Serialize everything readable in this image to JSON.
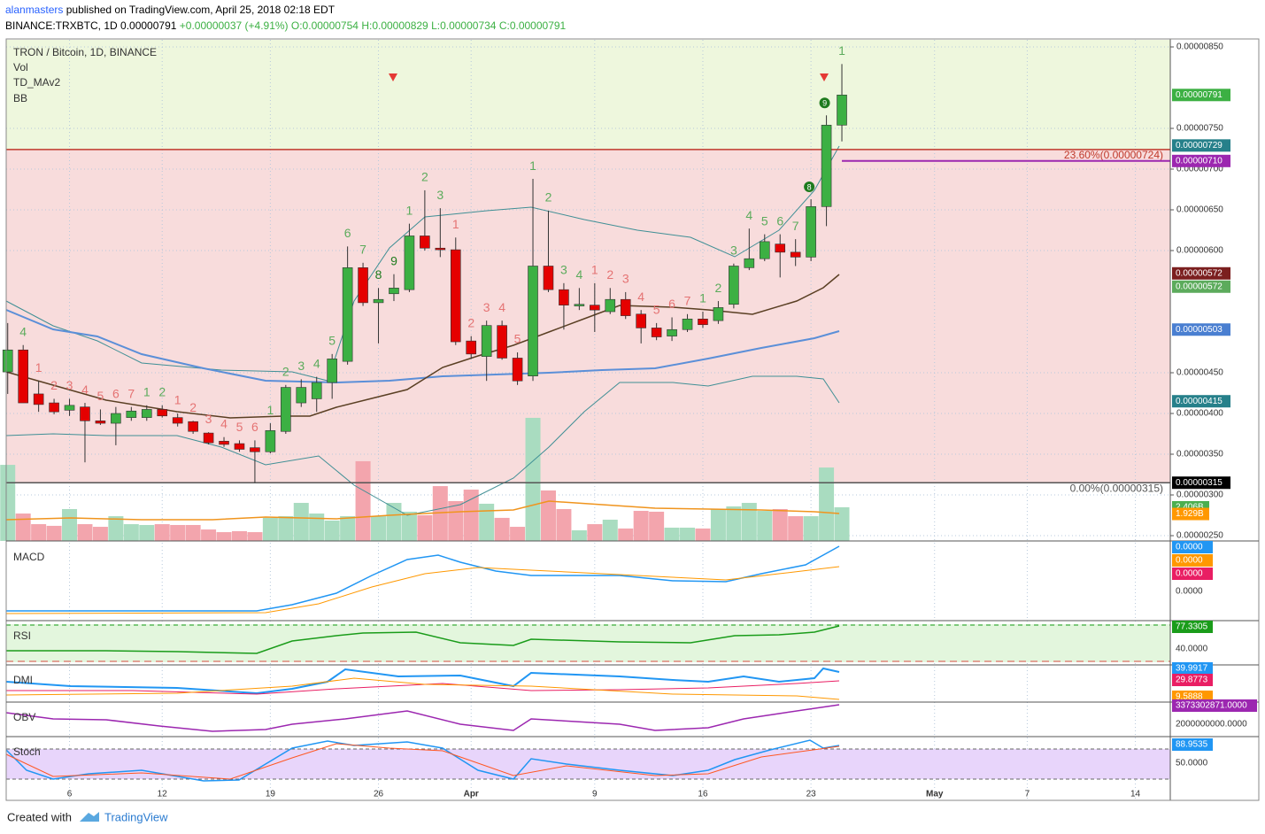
{
  "chart_data": {
    "type": "candlestick",
    "header": {
      "author": "alanmasters",
      "published": "published on TradingView.com, April 25, 2018 02:18 EDT",
      "symbol": "BINANCE:TRXBTC, 1D",
      "last": "0.00000791",
      "change": "+0.00000037 (+4.91%)",
      "o": "O:0.00000754",
      "h": "H:0.00000829",
      "l": "L:0.00000734",
      "c": "C:0.00000791"
    },
    "legend": [
      "TRON / Bitcoin, 1D, BINANCE",
      "Vol",
      "TD_MAv2",
      "BB"
    ],
    "footer": {
      "created": "Created with",
      "brand": "TradingView"
    },
    "categories": [
      null,
      null,
      null,
      null,
      "6",
      null,
      null,
      null,
      null,
      null,
      "12",
      null,
      null,
      null,
      null,
      null,
      null,
      "19",
      null,
      null,
      null,
      null,
      null,
      null,
      "26",
      null,
      null,
      null,
      null,
      null,
      "Apr",
      null,
      null,
      null,
      null,
      null,
      null,
      null,
      "9",
      null,
      null,
      null,
      null,
      null,
      null,
      "16",
      null,
      null,
      null,
      null,
      null,
      null,
      "23",
      null,
      null,
      null,
      null,
      null,
      null,
      null,
      "May",
      null,
      null,
      null,
      null,
      null,
      "7",
      null,
      null,
      null,
      null,
      null,
      null,
      "14"
    ],
    "open": [
      4.51e-06,
      4.78e-06,
      4.24e-06,
      4.13e-06,
      4.04e-06,
      4.08e-06,
      3.91e-06,
      3.88e-06,
      3.95e-06,
      3.95e-06,
      4.05e-06,
      3.95e-06,
      3.9e-06,
      3.76e-06,
      3.66e-06,
      3.63e-06,
      3.58e-06,
      3.53e-06,
      3.78e-06,
      4.13e-06,
      4.18e-06,
      4.38e-06,
      4.64e-06,
      5.79e-06,
      5.36e-06,
      5.47e-06,
      5.52e-06,
      6.18e-06,
      6.03e-06,
      6.01e-06,
      4.89e-06,
      4.7e-06,
      5.08e-06,
      4.68e-06,
      4.46e-06,
      5.81e-06,
      5.52e-06,
      5.32e-06,
      5.33e-06,
      5.25e-06,
      5.4e-06,
      5.22e-06,
      5.05e-06,
      4.95e-06,
      5.03e-06,
      5.16e-06,
      5.14e-06,
      5.34e-06,
      5.79e-06,
      5.9e-06,
      6.08e-06,
      5.98e-06,
      5.92e-06,
      6.54e-06,
      7.54e-06,
      null,
      null,
      null,
      null,
      null,
      null,
      null,
      null,
      null,
      null,
      null,
      null,
      null,
      null,
      null,
      null,
      null,
      null,
      null
    ],
    "high": [
      5.11e-06,
      4.84e-06,
      4.4e-06,
      4.18e-06,
      4.18e-06,
      4.13e-06,
      4.05e-06,
      4.08e-06,
      4.08e-06,
      4.1e-06,
      4.1e-06,
      4e-06,
      3.91e-06,
      3.77e-06,
      3.71e-06,
      3.67e-06,
      3.67e-06,
      3.88e-06,
      4.35e-06,
      4.42e-06,
      4.45e-06,
      4.73e-06,
      6.05e-06,
      5.85e-06,
      5.54e-06,
      5.71e-06,
      6.33e-06,
      6.74e-06,
      6.52e-06,
      6.16e-06,
      4.95e-06,
      5.14e-06,
      5.14e-06,
      4.75e-06,
      6.88e-06,
      6.49e-06,
      5.6e-06,
      5.54e-06,
      5.6e-06,
      5.54e-06,
      5.49e-06,
      5.27e-06,
      5.11e-06,
      5.18e-06,
      5.22e-06,
      5.25e-06,
      5.38e-06,
      5.84e-06,
      6.27e-06,
      6.2e-06,
      6.2e-06,
      6.14e-06,
      6.63e-06,
      7.66e-06,
      8.29e-06,
      null,
      null,
      null,
      null,
      null,
      null,
      null,
      null,
      null,
      null,
      null,
      null,
      null,
      null,
      null,
      null,
      null,
      null,
      null
    ],
    "low": [
      4.24e-06,
      4.13e-06,
      4.02e-06,
      3.99e-06,
      3.97e-06,
      3.4e-06,
      3.86e-06,
      3.61e-06,
      3.91e-06,
      3.91e-06,
      3.95e-06,
      3.84e-06,
      3.75e-06,
      3.62e-06,
      3.59e-06,
      3.53e-06,
      3.15e-06,
      3.51e-06,
      3.75e-06,
      4.08e-06,
      4.02e-06,
      4.18e-06,
      4.6e-06,
      5.32e-06,
      4.86e-06,
      5.38e-06,
      5.49e-06,
      6e-06,
      5.92e-06,
      4.84e-06,
      4.67e-06,
      4.4e-06,
      4.66e-06,
      4.35e-06,
      4.4e-06,
      5.49e-06,
      5.03e-06,
      5.27e-06,
      5e-06,
      5.22e-06,
      5.16e-06,
      4.86e-06,
      4.9e-06,
      4.89e-06,
      5e-06,
      5.05e-06,
      5.1e-06,
      5.29e-06,
      5.76e-06,
      5.87e-06,
      5.67e-06,
      5.81e-06,
      5.87e-06,
      6.3e-06,
      7.34e-06,
      null,
      null,
      null,
      null,
      null,
      null,
      null,
      null,
      null,
      null,
      null,
      null,
      null,
      null,
      null,
      null,
      null,
      null,
      null
    ],
    "close": [
      4.78e-06,
      4.13e-06,
      4.11e-06,
      4.02e-06,
      4.1e-06,
      3.91e-06,
      3.88e-06,
      4e-06,
      4.03e-06,
      4.05e-06,
      3.97e-06,
      3.88e-06,
      3.78e-06,
      3.64e-06,
      3.62e-06,
      3.56e-06,
      3.53e-06,
      3.79e-06,
      4.32e-06,
      4.32e-06,
      4.38e-06,
      4.67e-06,
      5.79e-06,
      5.36e-06,
      5.4e-06,
      5.54e-06,
      6.18e-06,
      6.03e-06,
      6.01e-06,
      4.88e-06,
      4.73e-06,
      5.08e-06,
      4.68e-06,
      4.4e-06,
      5.81e-06,
      5.52e-06,
      5.33e-06,
      5.34e-06,
      5.27e-06,
      5.4e-06,
      5.2e-06,
      5.05e-06,
      4.94e-06,
      5.03e-06,
      5.16e-06,
      5.09e-06,
      5.3e-06,
      5.81e-06,
      5.9e-06,
      6.11e-06,
      5.98e-06,
      5.92e-06,
      6.54e-06,
      7.54e-06,
      7.91e-06,
      null,
      null,
      null,
      null,
      null,
      null,
      null,
      null,
      null,
      null,
      null,
      null,
      null,
      null,
      null,
      null,
      null,
      null,
      null
    ],
    "volume": [
      5.44,
      1.96,
      1.2,
      1.08,
      2.28,
      1.2,
      1.01,
      1.77,
      1.2,
      1.14,
      1.2,
      1.14,
      1.14,
      0.82,
      0.63,
      0.7,
      0.63,
      1.65,
      1.77,
      2.72,
      1.96,
      1.46,
      1.77,
      5.7,
      1.77,
      2.72,
      2.09,
      1.84,
      3.92,
      2.85,
      3.67,
      2.66,
      1.65,
      1.01,
      8.8,
      3.61,
      2.28,
      0.76,
      1.2,
      1.52,
      0.89,
      2.15,
      2.09,
      0.95,
      0.95,
      0.89,
      2.28,
      2.47,
      2.72,
      2.15,
      2.28,
      1.77,
      1.77,
      5.25,
      2.41,
      null,
      null,
      null,
      null,
      null,
      null,
      null,
      null,
      null,
      null,
      null,
      null,
      null,
      null,
      null,
      null,
      null,
      null,
      null
    ],
    "td_setup": [
      null,
      {
        "label": "4",
        "color": "#5cab5c"
      },
      {
        "label": "1",
        "color": "#e57373"
      },
      {
        "label": "2",
        "color": "#e57373"
      },
      {
        "label": "3",
        "color": "#e57373"
      },
      {
        "label": "4",
        "color": "#e57373"
      },
      {
        "label": "5",
        "color": "#e57373"
      },
      {
        "label": "6",
        "color": "#e57373"
      },
      {
        "label": "7",
        "color": "#e57373"
      },
      {
        "label": "1",
        "color": "#5cab5c"
      },
      {
        "label": "2",
        "color": "#5cab5c"
      },
      {
        "label": "1",
        "color": "#e57373"
      },
      {
        "label": "2",
        "color": "#e57373"
      },
      {
        "label": "3",
        "color": "#e57373"
      },
      {
        "label": "4",
        "color": "#e57373"
      },
      {
        "label": "5",
        "color": "#e57373"
      },
      {
        "label": "6",
        "color": "#e57373"
      },
      {
        "label": "1",
        "color": "#5cab5c"
      },
      {
        "label": "2",
        "color": "#5cab5c"
      },
      {
        "label": "3",
        "color": "#5cab5c"
      },
      {
        "label": "4",
        "color": "#5cab5c"
      },
      {
        "label": "5",
        "color": "#5cab5c"
      },
      {
        "label": "6",
        "color": "#5cab5c"
      },
      {
        "label": "7",
        "color": "#5cab5c"
      },
      {
        "label": "8",
        "color": "#1e7b1e"
      },
      {
        "label": "9",
        "color": "#1e7b1e"
      },
      {
        "label": "1",
        "color": "#5cab5c"
      },
      {
        "label": "2",
        "color": "#5cab5c"
      },
      {
        "label": "3",
        "color": "#5cab5c"
      },
      {
        "label": "1",
        "color": "#e57373"
      },
      {
        "label": "2",
        "color": "#e57373"
      },
      {
        "label": "3",
        "color": "#e57373"
      },
      {
        "label": "4",
        "color": "#e57373"
      },
      {
        "label": "5",
        "color": "#e57373"
      },
      {
        "label": "1",
        "color": "#5cab5c"
      },
      {
        "label": "2",
        "color": "#5cab5c"
      },
      {
        "label": "3",
        "color": "#5cab5c"
      },
      {
        "label": "4",
        "color": "#5cab5c"
      },
      {
        "label": "1",
        "color": "#e57373"
      },
      {
        "label": "2",
        "color": "#e57373"
      },
      {
        "label": "3",
        "color": "#e57373"
      },
      {
        "label": "4",
        "color": "#e57373"
      },
      {
        "label": "5",
        "color": "#e57373"
      },
      {
        "label": "6",
        "color": "#e57373"
      },
      {
        "label": "7",
        "color": "#e57373"
      },
      {
        "label": "1",
        "color": "#5cab5c"
      },
      {
        "label": "2",
        "color": "#5cab5c"
      },
      {
        "label": "3",
        "color": "#5cab5c"
      },
      {
        "label": "4",
        "color": "#5cab5c"
      },
      {
        "label": "5",
        "color": "#5cab5c"
      },
      {
        "label": "6",
        "color": "#5cab5c"
      },
      {
        "label": "7",
        "color": "#5cab5c"
      },
      {
        "label": "8",
        "color": "#1e7b1e",
        "circle": true
      },
      {
        "label": "9",
        "color": "#1e7b1e",
        "circle": true
      },
      {
        "label": "1",
        "color": "#5cab5c"
      },
      null,
      null,
      null,
      null,
      null,
      null,
      null,
      null,
      null,
      null,
      null,
      null,
      null,
      null,
      null,
      null,
      null,
      null,
      null
    ],
    "up_color": "#3cb043",
    "down_color": "#e50000",
    "volume_up_color": "#a9dcc0",
    "volume_down_color": "#f3a5ad",
    "ylim": [
      2.435e-06,
      8.587e-06
    ],
    "volume_ylim": [
      0,
      10
    ],
    "yticks": [
      {
        "value": 8.5e-06,
        "label": "0.00000850"
      },
      {
        "value": 7.5e-06,
        "label": "0.00000750"
      },
      {
        "value": 7e-06,
        "label": "0.00000700"
      },
      {
        "value": 6.5e-06,
        "label": "0.00000650"
      },
      {
        "value": 6e-06,
        "label": "0.00000600"
      },
      {
        "value": 4.5e-06,
        "label": "0.00000450"
      },
      {
        "value": 4e-06,
        "label": "0.00000400"
      },
      {
        "value": 3.5e-06,
        "label": "0.00000350"
      },
      {
        "value": 3e-06,
        "label": "0.00000300"
      },
      {
        "value": 2.5e-06,
        "label": "0.00000250"
      }
    ],
    "grid": true,
    "levels": [
      {
        "value": 7.24e-06,
        "label": "23.60%(0.00000724)",
        "color": "#c0392b",
        "fill": "#eef7dd"
      },
      {
        "value": 3.15e-06,
        "label": "0.00%(0.00000315)",
        "color": "#555555",
        "fill": "#f8dcdc"
      }
    ],
    "price_labels": [
      {
        "value": 7.91e-06,
        "label": "0.00000791",
        "color": "#3cb043"
      },
      {
        "value": 7.29e-06,
        "label": "0.00000729",
        "color": "#26808a"
      },
      {
        "value": 7.1e-06,
        "label": "0.00000710",
        "color": "#9c27b0",
        "line": true
      },
      {
        "value": 5.72e-06,
        "label": "0.00000572",
        "color": "#7b1f1f"
      },
      {
        "value": 5.72e-06,
        "label": "0.00000572",
        "color": "#5cab5c",
        "offset": true
      },
      {
        "value": 5.03e-06,
        "label": "0.00000503",
        "color": "#4a7fd1"
      },
      {
        "value": 4.15e-06,
        "label": "0.00000415",
        "color": "#26808a"
      },
      {
        "value": 3.15e-06,
        "label": "0.00000315",
        "color": "#000000"
      }
    ],
    "volume_labels": [
      {
        "value": 2.406,
        "label": "2.406B",
        "color": "#4caf50"
      },
      {
        "value": 1.929,
        "label": "1.929B",
        "color": "#ff9800"
      }
    ],
    "panes": [
      {
        "name": "MACD",
        "labels": [
          {
            "text": "0.0000",
            "color": "#2196f3"
          },
          {
            "text": "0.0000",
            "color": "#ff9800"
          },
          {
            "text": "0.0000",
            "color": "#e91e63"
          },
          {
            "text": "0.0000",
            "color": null
          }
        ]
      },
      {
        "name": "RSI",
        "labels": [
          {
            "text": "77.3305",
            "color": "#1a9c1a"
          },
          {
            "text": "40.0000",
            "color": null
          }
        ]
      },
      {
        "name": "DMI",
        "labels": [
          {
            "text": "39.9917",
            "color": "#2196f3"
          },
          {
            "text": "29.8773",
            "color": "#e91e63"
          },
          {
            "text": "9.5888",
            "color": "#ff9800"
          }
        ]
      },
      {
        "name": "OBV",
        "labels": [
          {
            "text": "3373302871.0000",
            "color": "#9c27b0"
          },
          {
            "text": "2000000000.0000",
            "color": null
          }
        ]
      },
      {
        "name": "Stoch",
        "labels": [
          {
            "text": "88.9535",
            "color": "#2196f3"
          },
          {
            "text": "50.0000",
            "color": null
          }
        ]
      }
    ]
  }
}
